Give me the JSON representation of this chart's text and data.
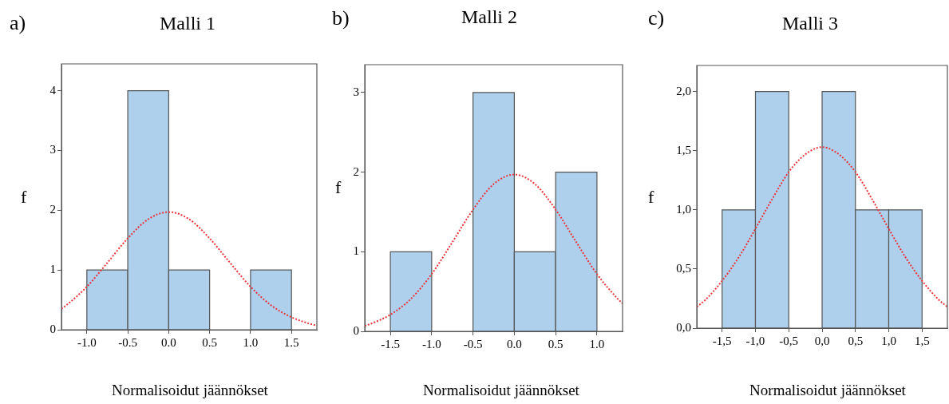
{
  "chart_data": [
    {
      "type": "histogram",
      "title": "Malli 1",
      "xlabel": "Normalisoidut jäännökset",
      "ylabel": "f",
      "annotations": [
        "a)"
      ],
      "bins": [
        -1,
        -0.5,
        0,
        0.5,
        1,
        1.5
      ],
      "values": [
        1,
        4,
        1,
        0,
        1
      ],
      "color": "#afd0ec",
      "series": [
        {
          "type": "line",
          "color": "#e8363c",
          "line_style": "dotted",
          "marker": "none",
          "x": [
            -1.31,
            -1.25,
            -1,
            -0.75,
            -0.5,
            -0.25,
            0,
            0.25,
            0.5,
            0.75,
            1,
            1.25,
            1.5,
            1.75,
            1.81
          ],
          "values": [
            0.35,
            0.41,
            0.72,
            1.12,
            1.53,
            1.85,
            1.97,
            1.85,
            1.53,
            1.12,
            0.72,
            0.41,
            0.21,
            0.09,
            0.07
          ]
        }
      ],
      "xlim": [
        -1.31,
        1.81
      ],
      "xticks": [
        {
          "value": -1,
          "label": "-1.0"
        },
        {
          "value": -0.5,
          "label": "-0.5"
        },
        {
          "value": 0,
          "label": "0.0"
        },
        {
          "value": 0.5,
          "label": "0.5"
        },
        {
          "value": 1,
          "label": "1.0"
        },
        {
          "value": 1.5,
          "label": "1.5"
        }
      ],
      "ylim": [
        0,
        4.45
      ],
      "yticks": [
        0,
        1,
        2,
        3,
        4
      ],
      "grid": false,
      "legend": false
    },
    {
      "type": "histogram",
      "title": "Malli 2",
      "xlabel": "Normalisoidut jäännökset",
      "ylabel": "f",
      "annotations": [
        "b)"
      ],
      "bins": [
        -1.5,
        -1,
        -0.5,
        0,
        0.5,
        1
      ],
      "values": [
        1,
        0,
        3,
        1,
        2
      ],
      "color": "#afd0ec",
      "series": [
        {
          "type": "line",
          "color": "#e8363c",
          "line_style": "dotted",
          "marker": "none",
          "x": [
            -1.81,
            -1.75,
            -1.5,
            -1.25,
            -1,
            -0.75,
            -0.5,
            -0.25,
            0,
            0.25,
            0.5,
            0.75,
            1,
            1.25,
            1.31
          ],
          "values": [
            0.07,
            0.09,
            0.21,
            0.41,
            0.72,
            1.12,
            1.53,
            1.85,
            1.97,
            1.85,
            1.53,
            1.12,
            0.72,
            0.41,
            0.35
          ]
        }
      ],
      "xlim": [
        -1.81,
        1.31
      ],
      "xticks": [
        {
          "value": -1.5,
          "label": "-1.5"
        },
        {
          "value": -1,
          "label": "-1.0"
        },
        {
          "value": -0.5,
          "label": "-0.5"
        },
        {
          "value": 0,
          "label": "0.0"
        },
        {
          "value": 0.5,
          "label": "0.5"
        },
        {
          "value": 1,
          "label": "1.0"
        }
      ],
      "ylim": [
        0,
        3.35
      ],
      "yticks": [
        0,
        1,
        2,
        3
      ],
      "grid": false,
      "legend": false
    },
    {
      "type": "histogram",
      "title": "Malli 3",
      "xlabel": "Normalisoidut jäännökset",
      "ylabel": "f",
      "annotations": [
        "c)"
      ],
      "bins": [
        -1.5,
        -1,
        -0.5,
        0,
        0.5,
        1,
        1.5
      ],
      "values": [
        1,
        2,
        0,
        2,
        1,
        1
      ],
      "color": "#afd0ec",
      "series": [
        {
          "type": "line",
          "color": "#e8363c",
          "line_style": "dotted",
          "marker": "none",
          "x": [
            -1.88,
            -1.75,
            -1.5,
            -1.25,
            -1,
            -0.75,
            -0.5,
            -0.25,
            0,
            0.25,
            0.5,
            0.75,
            1,
            1.25,
            1.5,
            1.75,
            1.88
          ],
          "values": [
            0.18,
            0.24,
            0.4,
            0.6,
            0.84,
            1.09,
            1.32,
            1.47,
            1.53,
            1.47,
            1.32,
            1.09,
            0.84,
            0.6,
            0.4,
            0.24,
            0.18
          ]
        }
      ],
      "xlim": [
        -1.88,
        1.88
      ],
      "xticks": [
        {
          "value": -1.5,
          "label": "-1,5"
        },
        {
          "value": -1,
          "label": "-1,0"
        },
        {
          "value": -0.5,
          "label": "-0,5"
        },
        {
          "value": 0,
          "label": "0,0"
        },
        {
          "value": 0.5,
          "label": "0,5"
        },
        {
          "value": 1,
          "label": "1,0"
        },
        {
          "value": 1.5,
          "label": "1,5"
        }
      ],
      "ylim": [
        0,
        2.22
      ],
      "yticks": [
        {
          "value": 0,
          "label": "0,0"
        },
        {
          "value": 0.5,
          "label": "0,5"
        },
        {
          "value": 1,
          "label": "1,0"
        },
        {
          "value": 1.5,
          "label": "1,5"
        },
        {
          "value": 2,
          "label": "2,0"
        }
      ],
      "grid": false,
      "legend": false
    }
  ]
}
